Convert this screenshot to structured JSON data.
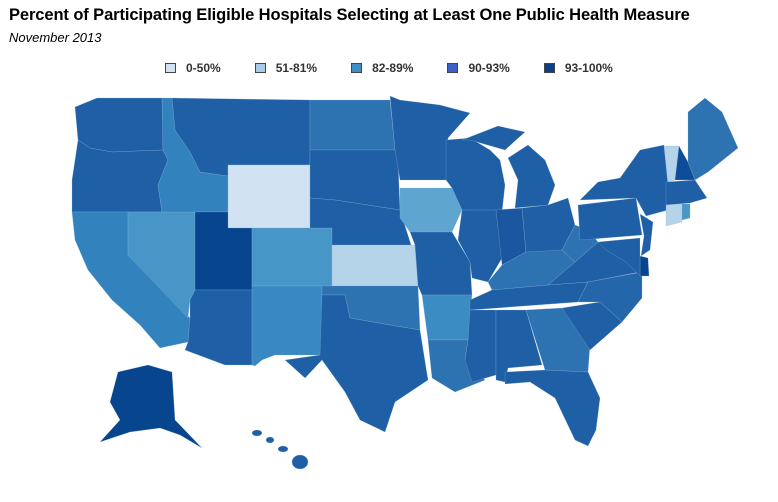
{
  "title": "Percent of Participating Eligible Hospitals Selecting at Least One Public Health Measure",
  "subtitle": "November 2013",
  "legend": [
    {
      "label": "0-50%",
      "color": "#d1e2f2"
    },
    {
      "label": "51-81%",
      "color": "#a9cce6"
    },
    {
      "label": "82-89%",
      "color": "#3f8ec7"
    },
    {
      "label": "90-93%",
      "color": "#3b5fc8"
    },
    {
      "label": "93-100%",
      "color": "#0a3f8a"
    }
  ],
  "states": {
    "WA": "#1f5fa6",
    "OR": "#1f5fa6",
    "CA": "#3282be",
    "NV": "#4896c8",
    "ID": "#3282be",
    "MT": "#1f5fa6",
    "WY": "#d1e2f2",
    "UT": "#08458f",
    "AZ": "#1f5fa6",
    "CO": "#4796c8",
    "NM": "#3a88c1",
    "ND": "#2d72b1",
    "SD": "#1f5fa6",
    "NE": "#1f5fa6",
    "KS": "#b5d4e9",
    "OK": "#2d72b1",
    "TX": "#1f5fa6",
    "MN": "#1f5fa6",
    "IA": "#5ea6d0",
    "MO": "#1f5fa6",
    "AR": "#3c8cc4",
    "LA": "#2d72b1",
    "WI": "#1f5fa6",
    "MI_L": "#1f5fa6",
    "MI_U": "#1f5fa6",
    "IL": "#1f5fa6",
    "IN": "#1a57a0",
    "OH": "#1f5fa6",
    "KY": "#2d72b1",
    "TN": "#1f5fa6",
    "MS": "#1f5fa6",
    "AL": "#1f5fa6",
    "GA": "#2d72b1",
    "FL": "#1f5fa6",
    "SC": "#1f5fa6",
    "NC": "#2366aa",
    "VA": "#1f5fa6",
    "WV": "#2d72b1",
    "PA": "#1f5fa6",
    "NY": "#1f5fa6",
    "NJ": "#1f5fa6",
    "DE": "#08458f",
    "MD": "#1f5fa6",
    "VT": "#b5d4e9",
    "NH": "#0f4d98",
    "ME": "#2d72b1",
    "MA": "#1f5fa6",
    "CT": "#b5d4e9",
    "RI": "#4a96c8",
    "AK": "#08458f",
    "HI": "#1f5fa6"
  }
}
